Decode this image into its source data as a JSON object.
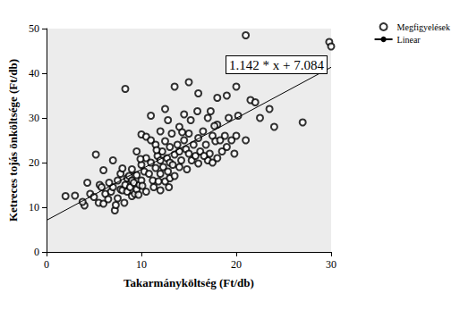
{
  "chart_data": {
    "type": "scatter",
    "x_label": "Takarmányköltség (Ft/db)",
    "y_label": "Ketreces tojás önköltsége (Ft/db)",
    "annotation": "1.142 * x + 7.084",
    "xlim": [
      0,
      30
    ],
    "xticks": [
      0,
      10,
      20,
      30
    ],
    "ylim": [
      0,
      50
    ],
    "yticks": [
      0,
      10,
      20,
      30,
      40,
      50
    ],
    "grid": false,
    "legend": "upper right",
    "series": [
      {
        "name": "Megfigyelések",
        "type": "scatter",
        "marker": "circle",
        "color": "#000000",
        "x": [
          2,
          3,
          4,
          4.3,
          4.6,
          5,
          5.2,
          5.5,
          5.6,
          6,
          6,
          6.2,
          6.5,
          6.8,
          7,
          7,
          7.2,
          7.3,
          7.5,
          7.5,
          7.8,
          7.8,
          8,
          8,
          8.2,
          8.3,
          8.3,
          8.5,
          8.5,
          8.7,
          8.8,
          9,
          9,
          9,
          9.2,
          9.3,
          9.5,
          9.5,
          9.5,
          9.7,
          9.8,
          10,
          10,
          10,
          10.1,
          10.3,
          10.5,
          10.5,
          10.5,
          10.8,
          11,
          11,
          11,
          11.2,
          11.3,
          11.5,
          11.5,
          11.7,
          11.8,
          12,
          12,
          12,
          12,
          12.2,
          12.3,
          12.5,
          12.5,
          12.5,
          12.7,
          12.8,
          12.8,
          13,
          13,
          13,
          13.2,
          13.3,
          13.5,
          13.5,
          13.5,
          13.8,
          14,
          14,
          14,
          14.2,
          14.5,
          14.5,
          14.7,
          14.8,
          15,
          15,
          15,
          15.2,
          15.3,
          15.5,
          15.7,
          16,
          16,
          16,
          16.2,
          16.5,
          16.8,
          17,
          17,
          17.2,
          17.3,
          17.5,
          17.5,
          17.8,
          18,
          18,
          18,
          18.3,
          18.5,
          18.8,
          19,
          19,
          19.2,
          19.5,
          19.8,
          20,
          20,
          20.2,
          21,
          21,
          21.5,
          22,
          22.5,
          23.5,
          24,
          27,
          29.8,
          30,
          3.8,
          5.8,
          6.6,
          11.6,
          14.3,
          9.9,
          12.9,
          17.7,
          16.6,
          15.9
        ],
        "values": [
          12.5,
          12.6,
          10.4,
          15.5,
          13,
          12.3,
          21.8,
          11,
          15,
          10.8,
          18.3,
          13,
          11.8,
          13.5,
          14.5,
          20.5,
          9.3,
          10.5,
          12,
          16,
          17.5,
          14,
          13.8,
          18.7,
          11,
          15,
          36.5,
          13.5,
          16.5,
          17,
          14.5,
          12.5,
          16,
          18.5,
          15.5,
          13,
          14,
          17.2,
          22.5,
          12.8,
          15,
          16,
          19.5,
          26.3,
          14.8,
          18,
          21,
          25.8,
          13.5,
          17.5,
          20,
          25,
          30.5,
          16,
          14.5,
          18.8,
          24,
          21.5,
          15.8,
          13.8,
          17.5,
          20.5,
          27,
          22.5,
          19,
          15.8,
          24.8,
          32,
          21,
          18,
          29.5,
          20,
          23.5,
          16.5,
          26.5,
          19.5,
          37,
          21.8,
          17,
          24,
          19,
          22.5,
          28,
          20.5,
          25,
          30.8,
          23,
          18.5,
          38,
          22,
          26.5,
          29.5,
          20.5,
          24,
          21.5,
          19.8,
          25.5,
          35.5,
          22.5,
          27,
          24,
          20.5,
          30,
          22,
          31.5,
          26,
          20,
          24.8,
          21,
          34.5,
          28.5,
          25,
          22.5,
          26,
          23.5,
          35,
          30,
          25,
          22,
          26,
          37,
          30.5,
          48.5,
          25,
          34,
          33.5,
          30,
          32,
          28,
          29,
          47,
          46,
          11.2,
          14.5,
          15.5,
          22.8,
          26.8,
          20.8,
          14.5,
          28.2,
          21.5,
          31.5
        ]
      },
      {
        "name": "Linear",
        "type": "line",
        "line_style": "solid",
        "color": "#000000",
        "x": [
          0,
          30
        ],
        "values": [
          7.084,
          41.344
        ]
      }
    ]
  }
}
